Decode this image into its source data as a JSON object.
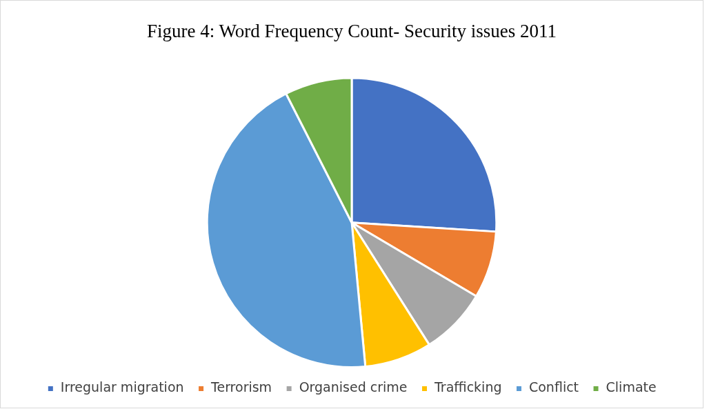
{
  "chart_data": {
    "type": "pie",
    "title": "Figure 4: Word Frequency Count- Security issues 2011",
    "categories": [
      "Irregular migration",
      "Terrorism",
      "Organised crime",
      "Trafficking",
      "Conflict",
      "Climate"
    ],
    "values": [
      26,
      7.5,
      7.5,
      7.5,
      44,
      7.5
    ],
    "colors": [
      "#4472c4",
      "#ed7d31",
      "#a5a5a5",
      "#ffc000",
      "#5b9bd5",
      "#70ad47"
    ],
    "legend": "bottom"
  }
}
